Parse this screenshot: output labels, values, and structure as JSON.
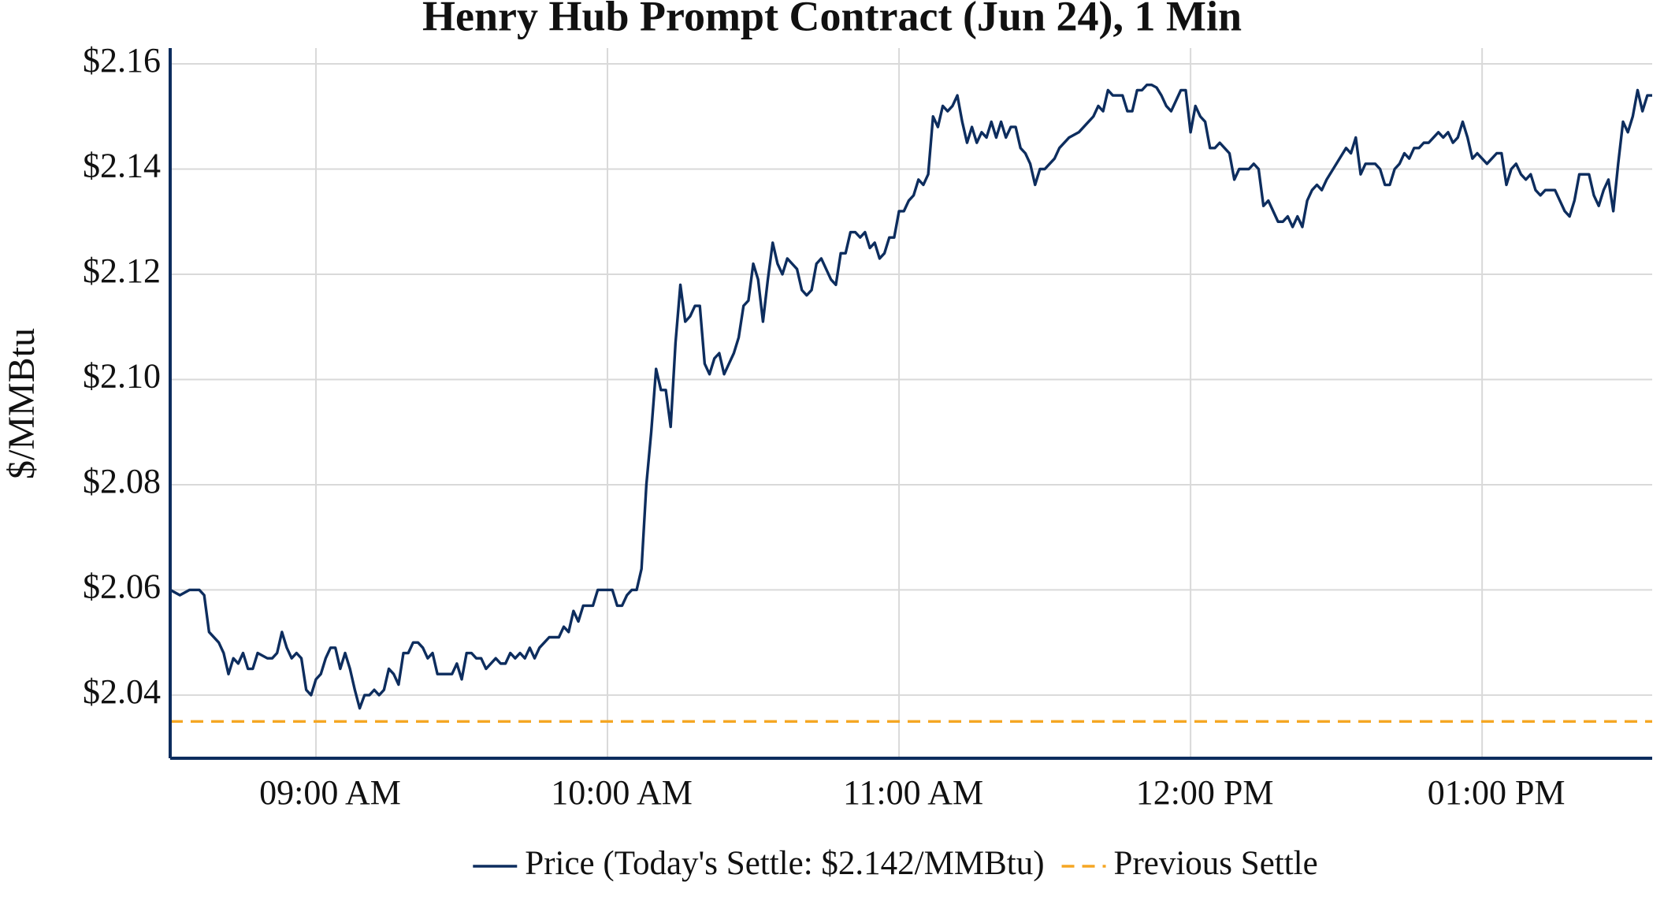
{
  "chart_data": {
    "type": "line",
    "title": "Henry Hub Prompt Contract (Jun 24), 1 Min",
    "y_label": "$/MMBtu",
    "x": [
      "08:30",
      "08:32",
      "08:34",
      "08:36",
      "08:37",
      "08:38",
      "08:40",
      "08:41",
      "08:42",
      "08:43",
      "08:44",
      "08:45",
      "08:46",
      "08:47",
      "08:48",
      "08:50",
      "08:51",
      "08:52",
      "08:53",
      "08:54",
      "08:55",
      "08:56",
      "08:57",
      "08:58",
      "08:59",
      "09:00",
      "09:01",
      "09:02",
      "09:03",
      "09:04",
      "09:05",
      "09:06",
      "09:07",
      "09:08",
      "09:09",
      "09:10",
      "09:11",
      "09:12",
      "09:13",
      "09:14",
      "09:15",
      "09:16",
      "09:17",
      "09:18",
      "09:19",
      "09:20",
      "09:21",
      "09:22",
      "09:23",
      "09:24",
      "09:25",
      "09:27",
      "09:28",
      "09:29",
      "09:30",
      "09:31",
      "09:32",
      "09:33",
      "09:34",
      "09:35",
      "09:36",
      "09:37",
      "09:38",
      "09:39",
      "09:40",
      "09:41",
      "09:42",
      "09:43",
      "09:44",
      "09:45",
      "09:46",
      "09:47",
      "09:48",
      "09:50",
      "09:51",
      "09:52",
      "09:53",
      "09:54",
      "09:55",
      "09:57",
      "09:58",
      "10:01",
      "10:02",
      "10:03",
      "10:04",
      "10:05",
      "10:06",
      "10:07",
      "10:08",
      "10:09",
      "10:10",
      "10:11",
      "10:12",
      "10:13",
      "10:14",
      "10:15",
      "10:16",
      "10:17",
      "10:18",
      "10:19",
      "10:20",
      "10:21",
      "10:22",
      "10:23",
      "10:24",
      "10:25",
      "10:26",
      "10:27",
      "10:28",
      "10:29",
      "10:30",
      "10:31",
      "10:32",
      "10:33",
      "10:34",
      "10:35",
      "10:36",
      "10:37",
      "10:38",
      "10:39",
      "10:40",
      "10:41",
      "10:42",
      "10:43",
      "10:44",
      "10:45",
      "10:46",
      "10:47",
      "10:48",
      "10:49",
      "10:50",
      "10:51",
      "10:52",
      "10:53",
      "10:54",
      "10:55",
      "10:56",
      "10:57",
      "10:58",
      "10:59",
      "11:00",
      "11:01",
      "11:02",
      "11:03",
      "11:04",
      "11:05",
      "11:06",
      "11:07",
      "11:08",
      "11:09",
      "11:10",
      "11:11",
      "11:12",
      "11:13",
      "11:14",
      "11:15",
      "11:16",
      "11:17",
      "11:18",
      "11:19",
      "11:20",
      "11:21",
      "11:22",
      "11:23",
      "11:24",
      "11:25",
      "11:26",
      "11:27",
      "11:28",
      "11:29",
      "11:30",
      "11:31",
      "11:32",
      "11:33",
      "11:35",
      "11:37",
      "11:39",
      "11:40",
      "11:41",
      "11:42",
      "11:43",
      "11:44",
      "11:46",
      "11:47",
      "11:48",
      "11:49",
      "11:50",
      "11:51",
      "11:52",
      "11:53",
      "11:54",
      "11:55",
      "11:56",
      "11:57",
      "11:58",
      "11:59",
      "12:00",
      "12:01",
      "12:02",
      "12:03",
      "12:04",
      "12:05",
      "12:06",
      "12:07",
      "12:08",
      "12:09",
      "12:10",
      "12:11",
      "12:12",
      "12:13",
      "12:14",
      "12:15",
      "12:16",
      "12:17",
      "12:18",
      "12:19",
      "12:20",
      "12:21",
      "12:22",
      "12:23",
      "12:24",
      "12:25",
      "12:26",
      "12:27",
      "12:28",
      "12:30",
      "12:32",
      "12:33",
      "12:34",
      "12:35",
      "12:36",
      "12:37",
      "12:38",
      "12:39",
      "12:40",
      "12:41",
      "12:42",
      "12:43",
      "12:44",
      "12:45",
      "12:46",
      "12:47",
      "12:48",
      "12:49",
      "12:50",
      "12:51",
      "12:52",
      "12:53",
      "12:54",
      "12:55",
      "12:56",
      "12:57",
      "12:58",
      "12:59",
      "13:00",
      "13:01",
      "13:02",
      "13:03",
      "13:04",
      "13:05",
      "13:06",
      "13:07",
      "13:08",
      "13:09",
      "13:10",
      "13:11",
      "13:12",
      "13:13",
      "13:14",
      "13:15",
      "13:16",
      "13:17",
      "13:18",
      "13:19",
      "13:20",
      "13:21",
      "13:22",
      "13:23",
      "13:24",
      "13:25",
      "13:26",
      "13:27",
      "13:28",
      "13:29",
      "13:30",
      "13:31",
      "13:32",
      "13:33",
      "13:34",
      "13:35"
    ],
    "series": [
      {
        "name": "Price (Today's Settle: $2.142/MMBtu)",
        "color": "#0d2d5e",
        "values": [
          2.06,
          2.059,
          2.06,
          2.06,
          2.059,
          2.052,
          2.05,
          2.048,
          2.044,
          2.047,
          2.046,
          2.048,
          2.045,
          2.045,
          2.048,
          2.047,
          2.047,
          2.048,
          2.052,
          2.049,
          2.047,
          2.048,
          2.047,
          2.041,
          2.04,
          2.043,
          2.044,
          2.047,
          2.049,
          2.049,
          2.045,
          2.048,
          2.045,
          2.041,
          2.0375,
          2.04,
          2.04,
          2.041,
          2.04,
          2.041,
          2.045,
          2.044,
          2.042,
          2.048,
          2.048,
          2.05,
          2.05,
          2.049,
          2.047,
          2.048,
          2.044,
          2.044,
          2.044,
          2.046,
          2.043,
          2.048,
          2.048,
          2.047,
          2.047,
          2.045,
          2.046,
          2.047,
          2.046,
          2.046,
          2.048,
          2.047,
          2.048,
          2.047,
          2.049,
          2.047,
          2.049,
          2.05,
          2.051,
          2.051,
          2.053,
          2.052,
          2.056,
          2.054,
          2.057,
          2.057,
          2.06,
          2.06,
          2.057,
          2.057,
          2.059,
          2.06,
          2.06,
          2.064,
          2.08,
          2.09,
          2.102,
          2.098,
          2.098,
          2.091,
          2.107,
          2.118,
          2.111,
          2.112,
          2.114,
          2.114,
          2.103,
          2.101,
          2.104,
          2.105,
          2.101,
          2.103,
          2.105,
          2.108,
          2.114,
          2.115,
          2.122,
          2.119,
          2.111,
          2.119,
          2.126,
          2.122,
          2.12,
          2.123,
          2.122,
          2.121,
          2.117,
          2.116,
          2.117,
          2.122,
          2.123,
          2.121,
          2.119,
          2.118,
          2.124,
          2.124,
          2.128,
          2.128,
          2.127,
          2.128,
          2.125,
          2.126,
          2.123,
          2.124,
          2.127,
          2.127,
          2.132,
          2.132,
          2.134,
          2.135,
          2.138,
          2.137,
          2.139,
          2.15,
          2.148,
          2.152,
          2.151,
          2.152,
          2.154,
          2.149,
          2.145,
          2.148,
          2.145,
          2.147,
          2.146,
          2.149,
          2.146,
          2.149,
          2.146,
          2.148,
          2.148,
          2.144,
          2.143,
          2.141,
          2.137,
          2.14,
          2.14,
          2.141,
          2.142,
          2.144,
          2.146,
          2.147,
          2.149,
          2.15,
          2.152,
          2.151,
          2.155,
          2.154,
          2.154,
          2.151,
          2.151,
          2.155,
          2.155,
          2.156,
          2.156,
          2.1555,
          2.154,
          2.152,
          2.151,
          2.153,
          2.155,
          2.155,
          2.147,
          2.152,
          2.15,
          2.149,
          2.144,
          2.144,
          2.145,
          2.144,
          2.143,
          2.138,
          2.14,
          2.14,
          2.14,
          2.141,
          2.14,
          2.133,
          2.134,
          2.132,
          2.13,
          2.13,
          2.131,
          2.129,
          2.131,
          2.129,
          2.134,
          2.136,
          2.137,
          2.136,
          2.138,
          2.141,
          2.144,
          2.143,
          2.146,
          2.139,
          2.141,
          2.141,
          2.141,
          2.14,
          2.137,
          2.137,
          2.14,
          2.141,
          2.143,
          2.142,
          2.144,
          2.144,
          2.145,
          2.145,
          2.146,
          2.147,
          2.146,
          2.147,
          2.145,
          2.146,
          2.149,
          2.146,
          2.142,
          2.143,
          2.142,
          2.141,
          2.142,
          2.143,
          2.143,
          2.137,
          2.14,
          2.141,
          2.139,
          2.138,
          2.139,
          2.136,
          2.135,
          2.136,
          2.136,
          2.136,
          2.134,
          2.132,
          2.131,
          2.134,
          2.139,
          2.139,
          2.139,
          2.135,
          2.133,
          2.136,
          2.138,
          2.132,
          2.141,
          2.149,
          2.147,
          2.15,
          2.155,
          2.151,
          2.154,
          2.154
        ]
      },
      {
        "name": "Previous Settle",
        "color": "#f5a623",
        "dash": true,
        "value": 2.035
      }
    ],
    "xlim": [
      "08:30",
      "13:35"
    ],
    "xticks": [
      {
        "value": "09:00",
        "label": "09:00 AM"
      },
      {
        "value": "10:00",
        "label": "10:00 AM"
      },
      {
        "value": "11:00",
        "label": "11:00 AM"
      },
      {
        "value": "12:00",
        "label": "12:00 PM"
      },
      {
        "value": "13:00",
        "label": "01:00 PM"
      }
    ],
    "ylim": [
      2.028,
      2.163
    ],
    "yticks": [
      {
        "value": 2.04,
        "label": "$2.04"
      },
      {
        "value": 2.06,
        "label": "$2.06"
      },
      {
        "value": 2.08,
        "label": "$2.08"
      },
      {
        "value": 2.1,
        "label": "$2.10"
      },
      {
        "value": 2.12,
        "label": "$2.12"
      },
      {
        "value": 2.14,
        "label": "$2.14"
      },
      {
        "value": 2.16,
        "label": "$2.16"
      }
    ],
    "grid": true,
    "legend": "bottom"
  }
}
